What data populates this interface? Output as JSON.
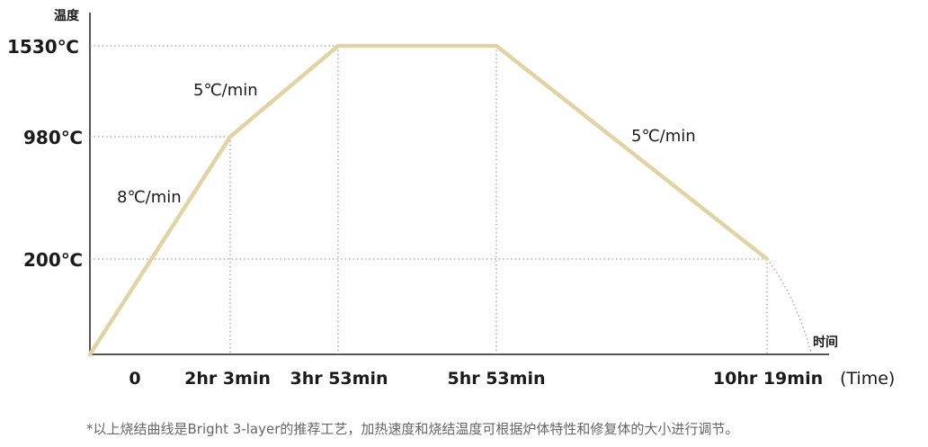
{
  "chart_data": {
    "type": "line",
    "ylabel": "温度",
    "xlabel": "时间",
    "x_unit": "(Time)",
    "y_ticks": [
      "200℃",
      "980℃",
      "1530℃"
    ],
    "x_ticks": [
      "0",
      "2hr 3min",
      "3hr 53min",
      "5hr 53min",
      "10hr 19min"
    ],
    "series": [
      {
        "points": [
          {
            "x": "0",
            "y": 0
          },
          {
            "x": "2hr 3min",
            "y": 980
          },
          {
            "x": "3hr 53min",
            "y": 1530
          },
          {
            "x": "5hr 53min",
            "y": 1530
          },
          {
            "x": "10hr 19min",
            "y": 200
          }
        ]
      }
    ],
    "annotations": [
      {
        "text": "8℃/min",
        "segment": "0 to 2hr 3min"
      },
      {
        "text": "5℃/min",
        "segment": "2hr 3min to 3hr 53min"
      },
      {
        "text": "5℃/min",
        "segment": "5hr 53min to 10hr 19min"
      }
    ],
    "line_color": "#e0d3a6",
    "guide_color": "#8a8a8a",
    "axis_color": "#555555"
  },
  "footnote": "*以上烧结曲线是Bright 3-layer的推荐工艺，加热速度和烧结温度可根据炉体特性和修复体的大小进行调节。"
}
